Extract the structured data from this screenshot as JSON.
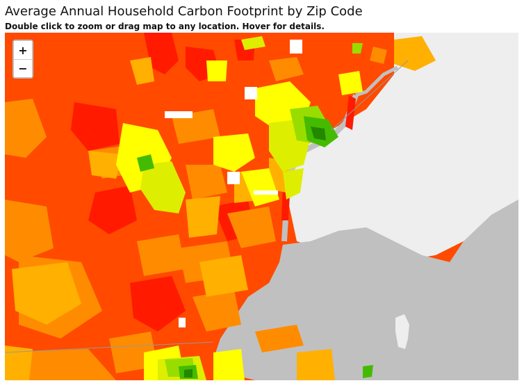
{
  "header": {
    "title": "Average Annual Household Carbon Footprint by Zip Code",
    "subtitle": "Double click to zoom or drag map to any location. Hover for details."
  },
  "zoom_controls": {
    "zoom_in_label": "+",
    "zoom_out_label": "−"
  },
  "colors": {
    "red": "#ff1a00",
    "red_orange": "#ff4a00",
    "orange": "#ff8c00",
    "light_orange": "#ffb000",
    "yellow": "#ffff00",
    "yellow_green": "#ddee00",
    "light_green": "#99dd00",
    "green": "#44bb00",
    "dark_green": "#228800",
    "water": "#c0c0c0",
    "land_outside": "#eeeeee"
  }
}
